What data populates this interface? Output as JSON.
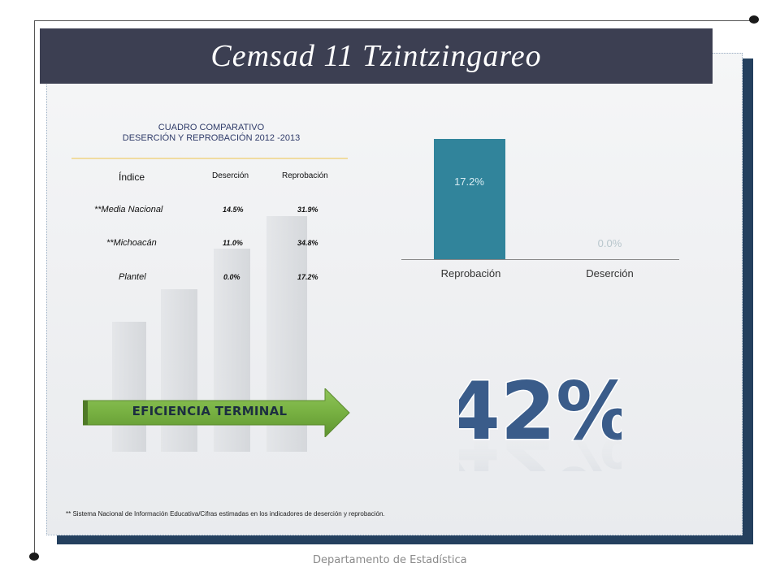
{
  "title": "Cemsad 11 Tzintzingareo",
  "table": {
    "heading_line1": "CUADRO COMPARATIVO",
    "heading_line2": "DESERCIÓN Y REPROBACIÓN  2012 -2013",
    "columns": [
      "Índice",
      "Deserción",
      "Reprobación"
    ],
    "rows": [
      {
        "label": "**Media Nacional",
        "desercion": "14.5%",
        "reprobacion": "31.9%"
      },
      {
        "label": "**Michoacán",
        "desercion": "11.0%",
        "reprobacion": "34.8%"
      },
      {
        "label": "Plantel",
        "desercion": "0.0%",
        "reprobacion": "17.2%"
      }
    ]
  },
  "chart_data": {
    "type": "bar",
    "categories": [
      "Reprobación",
      "Deserción"
    ],
    "values": [
      17.2,
      0.0
    ],
    "data_labels": [
      "17.2%",
      "0.0%"
    ],
    "title": "",
    "xlabel": "",
    "ylabel": "",
    "ylim": [
      0,
      17.2
    ],
    "bar_color": "#31849b",
    "grid": false
  },
  "efficiency": {
    "label": "EFICIENCIA TERMINAL",
    "value": "42%"
  },
  "footnote": "** Sistema Nacional de Información Educativa/Cifras estimadas en los indicadores de deserción y reprobación.",
  "footer": "Departamento de Estadística",
  "colors": {
    "title_bar": "#3c3f52",
    "panel_shadow": "#24405e",
    "arrow_green": "#77b041",
    "big_number": "#3a5c8a"
  }
}
